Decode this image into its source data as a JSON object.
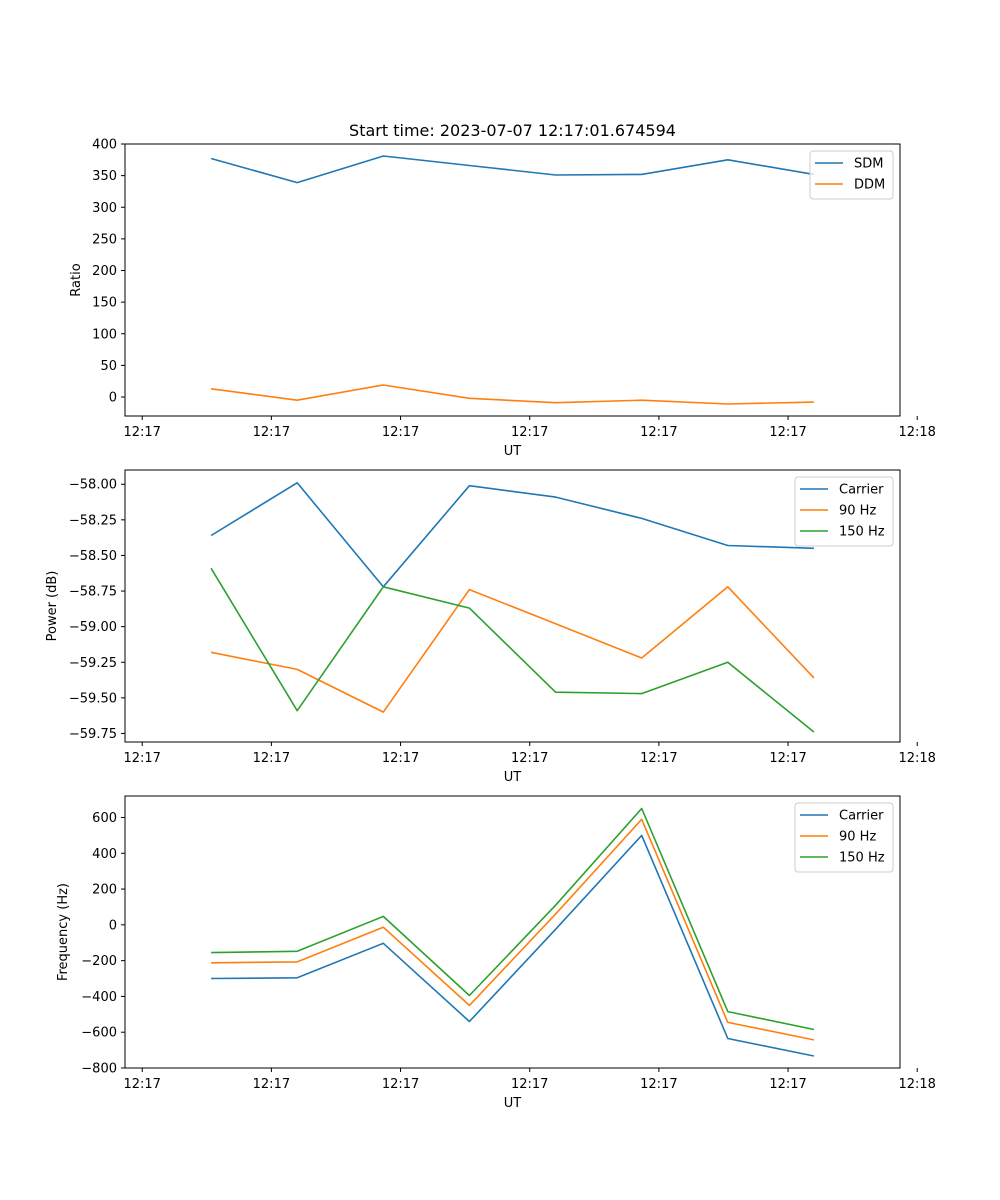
{
  "figure": {
    "title": "Start time: 2023-07-07 12:17:01.674594"
  },
  "chart_data": [
    {
      "type": "line",
      "title": "Start time: 2023-07-07 12:17:01.674594",
      "xlabel": "UT",
      "ylabel": "Ratio",
      "x": [
        1,
        2,
        3,
        4,
        5,
        6,
        7,
        8
      ],
      "xlim": [
        0,
        9
      ],
      "xticks": [
        0.2,
        1.7,
        3.2,
        4.7,
        6.2,
        7.7,
        9.2
      ],
      "xtick_labels": [
        "12:17",
        "12:17",
        "12:17",
        "12:17",
        "12:17",
        "12:17",
        "12:18"
      ],
      "ylim": [
        -30,
        400
      ],
      "yticks": [
        0,
        50,
        100,
        150,
        200,
        250,
        300,
        350,
        400
      ],
      "ytick_labels": [
        "0",
        "50",
        "100",
        "150",
        "200",
        "250",
        "300",
        "350",
        "400"
      ],
      "legend_position": "upper right",
      "series": [
        {
          "name": "SDM",
          "color": "#1f77b4",
          "values": [
            377,
            339,
            381,
            366,
            351,
            352,
            375,
            352
          ]
        },
        {
          "name": "DDM",
          "color": "#ff7f0e",
          "values": [
            13,
            -5,
            19,
            -2,
            -9,
            -5,
            -11,
            -8
          ]
        }
      ]
    },
    {
      "type": "line",
      "title": "",
      "xlabel": "UT",
      "ylabel": "Power (dB)",
      "x": [
        1,
        2,
        3,
        4,
        5,
        6,
        7,
        8
      ],
      "xlim": [
        0,
        9
      ],
      "xticks": [
        0.2,
        1.7,
        3.2,
        4.7,
        6.2,
        7.7,
        9.2
      ],
      "xtick_labels": [
        "12:17",
        "12:17",
        "12:17",
        "12:17",
        "12:17",
        "12:17",
        "12:18"
      ],
      "ylim": [
        -59.81,
        -57.9
      ],
      "yticks": [
        -59.75,
        -59.5,
        -59.25,
        -59.0,
        -58.75,
        -58.5,
        -58.25,
        -58.0
      ],
      "ytick_labels": [
        "−59.75",
        "−59.50",
        "−59.25",
        "−59.00",
        "−58.75",
        "−58.50",
        "−58.25",
        "−58.00"
      ],
      "legend_position": "upper right",
      "series": [
        {
          "name": "Carrier",
          "color": "#1f77b4",
          "values": [
            -58.36,
            -57.99,
            -58.72,
            -58.01,
            -58.09,
            -58.24,
            -58.43,
            -58.45
          ]
        },
        {
          "name": "90 Hz",
          "color": "#ff7f0e",
          "values": [
            -59.18,
            -59.3,
            -59.6,
            -58.74,
            -58.98,
            -59.22,
            -58.72,
            -59.36
          ]
        },
        {
          "name": "150 Hz",
          "color": "#2ca02c",
          "values": [
            -58.59,
            -59.59,
            -58.72,
            -58.87,
            -59.46,
            -59.47,
            -59.25,
            -59.74
          ]
        }
      ]
    },
    {
      "type": "line",
      "title": "",
      "xlabel": "UT",
      "ylabel": "Frequency (Hz)",
      "x": [
        1,
        2,
        3,
        4,
        5,
        6,
        7,
        8
      ],
      "xlim": [
        0,
        9
      ],
      "xticks": [
        0.2,
        1.7,
        3.2,
        4.7,
        6.2,
        7.7,
        9.2
      ],
      "xtick_labels": [
        "12:17",
        "12:17",
        "12:17",
        "12:17",
        "12:17",
        "12:17",
        "12:18"
      ],
      "ylim": [
        -800,
        720
      ],
      "yticks": [
        -800,
        -600,
        -400,
        -200,
        0,
        200,
        400,
        600
      ],
      "ytick_labels": [
        "−800",
        "−600",
        "−400",
        "−200",
        "0",
        "200",
        "400",
        "600"
      ],
      "legend_position": "upper right",
      "series": [
        {
          "name": "Carrier",
          "color": "#1f77b4",
          "values": [
            -300,
            -296,
            -103,
            -540,
            -25,
            500,
            -635,
            -733
          ]
        },
        {
          "name": "90 Hz",
          "color": "#ff7f0e",
          "values": [
            -212,
            -207,
            -13,
            -450,
            60,
            590,
            -545,
            -643
          ]
        },
        {
          "name": "150 Hz",
          "color": "#2ca02c",
          "values": [
            -155,
            -148,
            47,
            -395,
            110,
            650,
            -485,
            -585
          ]
        }
      ]
    }
  ]
}
